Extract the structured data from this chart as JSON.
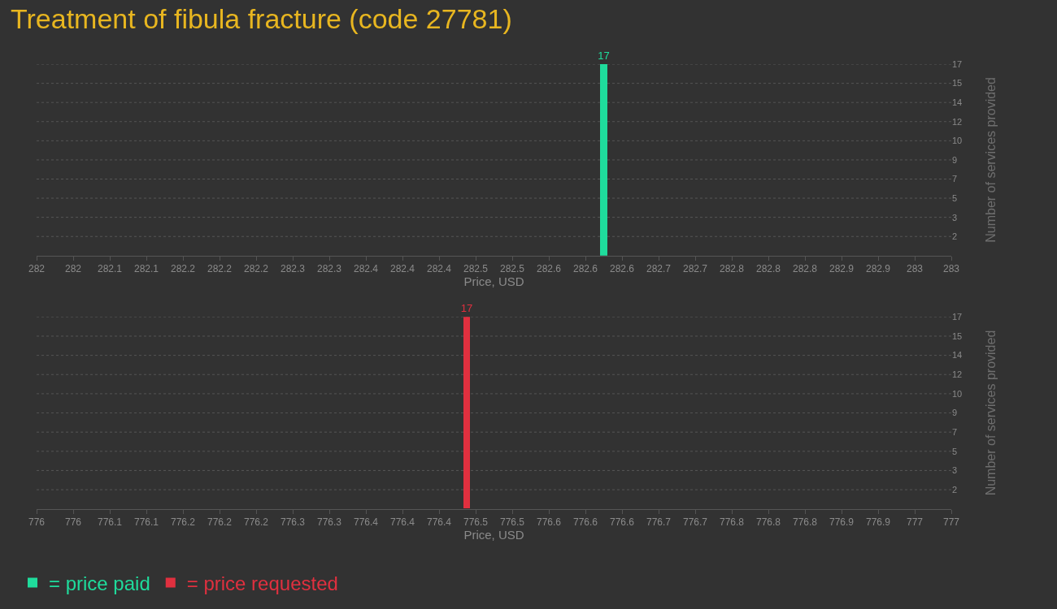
{
  "chart_data": [
    {
      "type": "bar",
      "title": "Treatment of fibula fracture (code 27781)",
      "xlabel": "Price, USD",
      "ylabel": "Number of services provided",
      "x": [
        282.62
      ],
      "series": [
        {
          "name": "= price paid",
          "color": "#1fdc9c",
          "values": [
            17
          ]
        }
      ],
      "xlim": [
        282,
        283
      ],
      "xticks": [
        282,
        {
          "value": 282.04,
          "label": "282"
        },
        {
          "value": 282.08,
          "label": "282.1"
        },
        {
          "value": 282.12,
          "label": "282.1"
        },
        {
          "value": 282.16,
          "label": "282.2"
        },
        {
          "value": 282.2,
          "label": "282.2"
        },
        {
          "value": 282.24,
          "label": "282.2"
        },
        {
          "value": 282.28,
          "label": "282.3"
        },
        {
          "value": 282.32,
          "label": "282.3"
        },
        {
          "value": 282.36,
          "label": "282.4"
        },
        {
          "value": 282.4,
          "label": "282.4"
        },
        {
          "value": 282.44,
          "label": "282.4"
        },
        {
          "value": 282.48,
          "label": "282.5"
        },
        {
          "value": 282.52,
          "label": "282.5"
        },
        {
          "value": 282.56,
          "label": "282.6"
        },
        {
          "value": 282.6,
          "label": "282.6"
        },
        {
          "value": 282.64,
          "label": "282.6"
        },
        {
          "value": 282.68,
          "label": "282.7"
        },
        {
          "value": 282.72,
          "label": "282.7"
        },
        {
          "value": 282.76,
          "label": "282.8"
        },
        {
          "value": 282.8,
          "label": "282.8"
        },
        {
          "value": 282.84,
          "label": "282.8"
        },
        {
          "value": 282.88,
          "label": "282.9"
        },
        {
          "value": 282.92,
          "label": "282.9"
        },
        {
          "value": 282.96,
          "label": "283"
        },
        283
      ],
      "ylim": [
        0,
        17
      ],
      "yticks": [
        {
          "value": 1.7,
          "label": "2"
        },
        {
          "value": 3.4,
          "label": "3"
        },
        {
          "value": 5.1,
          "label": "5"
        },
        {
          "value": 6.8,
          "label": "7"
        },
        {
          "value": 8.5,
          "label": "9"
        },
        {
          "value": 10.2,
          "label": "10"
        },
        {
          "value": 11.9,
          "label": "12"
        },
        {
          "value": 13.6,
          "label": "14"
        },
        {
          "value": 15.3,
          "label": "15"
        },
        17
      ],
      "grid": "y",
      "data_labels": true,
      "legend": "bottom left"
    },
    {
      "type": "bar",
      "xlabel": "Price, USD",
      "ylabel": "Number of services provided",
      "x": [
        776.47
      ],
      "series": [
        {
          "name": "= price requested",
          "color": "#e0303f",
          "values": [
            17
          ]
        }
      ],
      "xlim": [
        776,
        777
      ],
      "xticks": [
        776,
        {
          "value": 776.04,
          "label": "776"
        },
        {
          "value": 776.08,
          "label": "776.1"
        },
        {
          "value": 776.12,
          "label": "776.1"
        },
        {
          "value": 776.16,
          "label": "776.2"
        },
        {
          "value": 776.2,
          "label": "776.2"
        },
        {
          "value": 776.24,
          "label": "776.2"
        },
        {
          "value": 776.28,
          "label": "776.3"
        },
        {
          "value": 776.32,
          "label": "776.3"
        },
        {
          "value": 776.36,
          "label": "776.4"
        },
        {
          "value": 776.4,
          "label": "776.4"
        },
        {
          "value": 776.44,
          "label": "776.4"
        },
        {
          "value": 776.48,
          "label": "776.5"
        },
        {
          "value": 776.52,
          "label": "776.5"
        },
        {
          "value": 776.56,
          "label": "776.6"
        },
        {
          "value": 776.6,
          "label": "776.6"
        },
        {
          "value": 776.64,
          "label": "776.6"
        },
        {
          "value": 776.68,
          "label": "776.7"
        },
        {
          "value": 776.72,
          "label": "776.7"
        },
        {
          "value": 776.76,
          "label": "776.8"
        },
        {
          "value": 776.8,
          "label": "776.8"
        },
        {
          "value": 776.84,
          "label": "776.8"
        },
        {
          "value": 776.88,
          "label": "776.9"
        },
        {
          "value": 776.92,
          "label": "776.9"
        },
        {
          "value": 776.96,
          "label": "777"
        },
        777
      ],
      "ylim": [
        0,
        17
      ],
      "yticks": [
        {
          "value": 1.7,
          "label": "2"
        },
        {
          "value": 3.4,
          "label": "3"
        },
        {
          "value": 5.1,
          "label": "5"
        },
        {
          "value": 6.8,
          "label": "7"
        },
        {
          "value": 8.5,
          "label": "9"
        },
        {
          "value": 10.2,
          "label": "10"
        },
        {
          "value": 11.9,
          "label": "12"
        },
        {
          "value": 13.6,
          "label": "14"
        },
        {
          "value": 15.3,
          "label": "15"
        },
        17
      ],
      "grid": "y",
      "data_labels": true,
      "legend": "bottom left"
    }
  ]
}
